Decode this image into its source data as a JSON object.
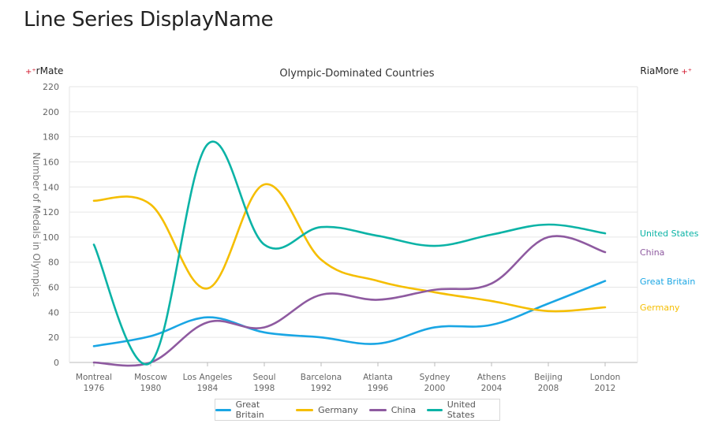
{
  "page": {
    "title": "Line Series DisplayName",
    "brand_left": "rMate",
    "brand_right": "RiaMore"
  },
  "chart_data": {
    "type": "line",
    "title": "Olympic-Dominated Countries",
    "ylabel": "Number of Medals in Olympics",
    "xlabel": "",
    "ylim": [
      0,
      220
    ],
    "yticks": [
      0,
      20,
      40,
      60,
      80,
      100,
      120,
      140,
      160,
      180,
      200,
      220
    ],
    "categories": [
      [
        "Montreal",
        "1976"
      ],
      [
        "Moscow",
        "1980"
      ],
      [
        "Los Angeles",
        "1984"
      ],
      [
        "Seoul",
        "1998"
      ],
      [
        "Barcelona",
        "1992"
      ],
      [
        "Atlanta",
        "1996"
      ],
      [
        "Sydney",
        "2000"
      ],
      [
        "Athens",
        "2004"
      ],
      [
        "Beijing",
        "2008"
      ],
      [
        "London",
        "2012"
      ]
    ],
    "grid": "horizontal",
    "legend_position": "bottom",
    "series": [
      {
        "name": "Great Britain",
        "color": "#1aa6e4",
        "values": [
          13,
          21,
          36,
          24,
          20,
          15,
          28,
          30,
          47,
          65
        ]
      },
      {
        "name": "Germany",
        "color": "#f5be00",
        "values": [
          129,
          126,
          59,
          142,
          82,
          65,
          56,
          49,
          41,
          44
        ]
      },
      {
        "name": "China",
        "color": "#8e5aa0",
        "values": [
          0,
          0,
          32,
          28,
          54,
          50,
          58,
          63,
          100,
          88
        ]
      },
      {
        "name": "United States",
        "color": "#0bb3a6",
        "values": [
          94,
          0,
          174,
          94,
          108,
          101,
          93,
          102,
          110,
          103
        ]
      }
    ]
  }
}
